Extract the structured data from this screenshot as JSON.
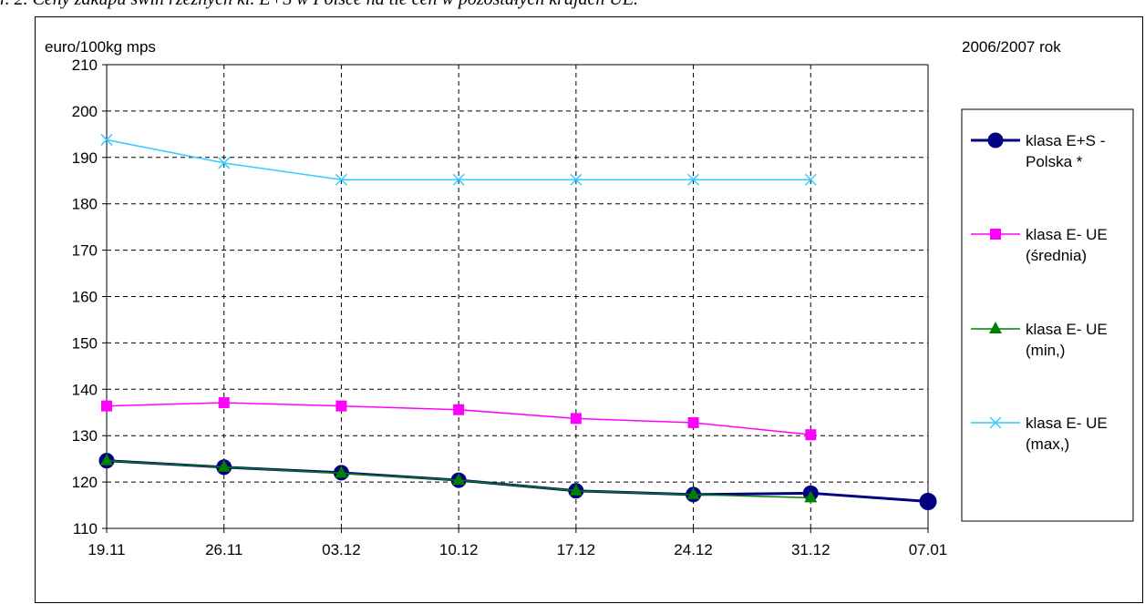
{
  "caption": "r. 2. Ceny zakupu świń rzeźnych kl. E+S w Polsce na tle cen w pozostałych krajach UE.",
  "chart_data": {
    "type": "line",
    "title": "",
    "ylabel": "euro/100kg mps",
    "xlabel": "",
    "period": "2006/2007 rok",
    "categories": [
      "19.11",
      "26.11",
      "03.12",
      "10.12",
      "17.12",
      "24.12",
      "31.12",
      "07.01"
    ],
    "ylim": [
      110,
      210
    ],
    "yticks": [
      110,
      120,
      130,
      140,
      150,
      160,
      170,
      180,
      190,
      200,
      210
    ],
    "grid": true,
    "legend_position": "right",
    "series": [
      {
        "name": "klasa E+S - Polska *",
        "legend_lines": [
          "klasa E+S -",
          "Polska *"
        ],
        "color": "#000080",
        "marker": "circle",
        "values": [
          124.6,
          123.2,
          122.0,
          120.4,
          118.1,
          117.3,
          117.6,
          115.8
        ]
      },
      {
        "name": "klasa E- UE (średnia)",
        "legend_lines": [
          "klasa E- UE",
          "(średnia)"
        ],
        "color": "#FF00FF",
        "marker": "square",
        "values": [
          136.4,
          137.1,
          136.4,
          135.6,
          133.7,
          132.8,
          130.2,
          null
        ]
      },
      {
        "name": "klasa E- UE (min,)",
        "legend_lines": [
          "klasa E- UE",
          "(min,)"
        ],
        "color": "#008000",
        "marker": "triangle",
        "values": [
          124.6,
          123.2,
          121.9,
          120.4,
          118.1,
          117.3,
          116.6,
          null
        ]
      },
      {
        "name": "klasa E- UE (max,)",
        "legend_lines": [
          "klasa E- UE",
          "(max,)"
        ],
        "color": "#33CCFF",
        "marker": "x",
        "values": [
          193.8,
          188.8,
          185.2,
          185.2,
          185.2,
          185.2,
          185.2,
          null
        ]
      }
    ]
  }
}
